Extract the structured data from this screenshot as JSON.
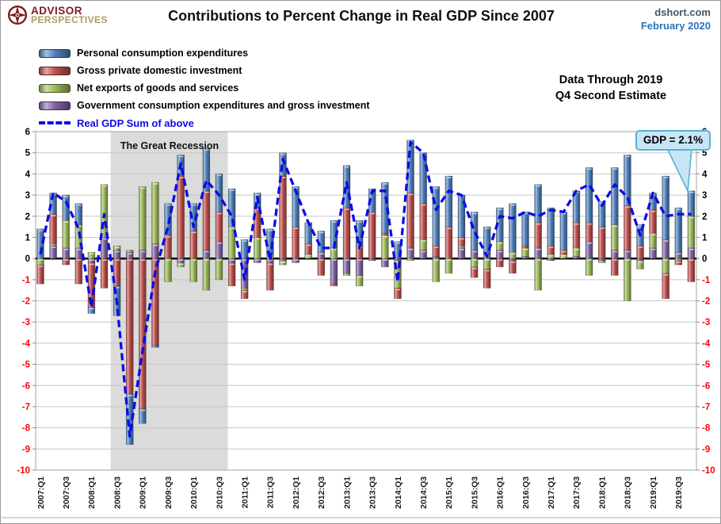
{
  "header": {
    "logo_line1": "ADVISOR",
    "logo_line2": "PERSPECTIVES",
    "title": "Contributions to Percent Change in Real GDP Since 2007",
    "source": "dshort.com",
    "date": "February 2020"
  },
  "annotations": {
    "data_through_line1": "Data Through 2019",
    "data_through_line2": "Q4 Second Estimate",
    "recession_label": "The Great Recession",
    "gdp_callout": "GDP = 2.1%"
  },
  "colors": {
    "callout_bg": "#c7e6f5",
    "callout_border": "#58b0d8",
    "recession_band": "#dbdbdb",
    "gridline": "#c6c6c6",
    "frame": "#a6a6a6",
    "zero_line": "#000000"
  },
  "chart_data": {
    "type": "bar",
    "subtype": "stacked-bars-with-dashed-line-overlay",
    "title": "Contributions to Percent Change in Real GDP Since 2007",
    "categories": [
      "2007:Q1",
      "2007:Q2",
      "2007:Q3",
      "2007:Q4",
      "2008:Q1",
      "2008:Q2",
      "2008:Q3",
      "2008:Q4",
      "2009:Q1",
      "2009:Q2",
      "2009:Q3",
      "2009:Q4",
      "2010:Q1",
      "2010:Q2",
      "2010:Q3",
      "2010:Q4",
      "2011:Q1",
      "2011:Q2",
      "2011:Q3",
      "2011:Q4",
      "2012:Q1",
      "2012:Q2",
      "2012:Q3",
      "2012:Q4",
      "2013:Q1",
      "2013:Q2",
      "2013:Q3",
      "2013:Q4",
      "2014:Q1",
      "2014:Q2",
      "2014:Q3",
      "2014:Q4",
      "2015:Q1",
      "2015:Q2",
      "2015:Q3",
      "2015:Q4",
      "2016:Q1",
      "2016:Q2",
      "2016:Q3",
      "2016:Q4",
      "2017:Q1",
      "2017:Q2",
      "2017:Q3",
      "2017:Q4",
      "2018:Q1",
      "2018:Q2",
      "2018:Q3",
      "2018:Q4",
      "2019:Q1",
      "2019:Q2",
      "2019:Q3",
      "2019:Q4"
    ],
    "x_label_every": 2,
    "ylim": [
      -10,
      6
    ],
    "y_tick_step": 1,
    "axis_colors": {
      "positive": "#000000",
      "negative": "#ff0000"
    },
    "grid": true,
    "legend_position": "top-left",
    "series": [
      {
        "key": "pce",
        "name": "Personal consumption expenditures",
        "color": "#4f81bd",
        "values": [
          1.4,
          1.0,
          1.2,
          1.0,
          -0.3,
          0.0,
          -1.4,
          -2.4,
          -0.7,
          -0.1,
          1.5,
          1.0,
          1.3,
          2.0,
          1.8,
          1.8,
          0.9,
          0.7,
          1.2,
          1.1,
          1.9,
          1.0,
          1.0,
          1.3,
          2.0,
          1.2,
          1.1,
          2.4,
          0.8,
          2.5,
          2.4,
          2.8,
          2.4,
          2.0,
          1.8,
          1.3,
          1.6,
          2.3,
          1.6,
          1.8,
          1.8,
          1.8,
          1.5,
          2.6,
          1.2,
          2.7,
          2.4,
          1.0,
          0.8,
          3.0,
          2.1,
          1.2
        ]
      },
      {
        "key": "inv",
        "name": "Gross private domestic investment",
        "color": "#c0504d",
        "values": [
          -0.9,
          1.4,
          -0.3,
          -1.2,
          -2.1,
          -1.4,
          -1.3,
          -6.4,
          -7.1,
          -4.1,
          1.1,
          3.9,
          1.3,
          2.8,
          1.4,
          -1.1,
          -0.4,
          1.4,
          -1.3,
          3.9,
          1.5,
          0.5,
          -0.8,
          -0.1,
          2.4,
          0.6,
          2.2,
          0.1,
          -0.5,
          2.6,
          1.7,
          0.5,
          1.5,
          0.4,
          -0.5,
          -0.9,
          -0.4,
          -0.6,
          0.1,
          1.2,
          0.4,
          0.2,
          1.2,
          0.9,
          1.5,
          -0.8,
          2.1,
          0.6,
          1.1,
          -1.2,
          -0.2,
          -1.1
        ]
      },
      {
        "key": "netx",
        "name": "Net exports of goods and services",
        "color": "#9bbb59",
        "values": [
          -0.3,
          0.1,
          1.3,
          1.1,
          0.3,
          2.5,
          0.2,
          0.1,
          3.0,
          2.9,
          -1.1,
          -0.2,
          -1.1,
          -1.5,
          -1.0,
          1.5,
          -0.1,
          1.0,
          0.2,
          -0.2,
          0.0,
          0.2,
          0.0,
          0.5,
          -0.1,
          -0.5,
          0.0,
          1.1,
          -1.3,
          -0.1,
          0.5,
          -1.1,
          -0.7,
          0.1,
          -0.4,
          -0.5,
          0.4,
          0.3,
          0.4,
          -1.5,
          0.2,
          0.2,
          0.4,
          -0.8,
          -0.1,
          1.2,
          -2.0,
          -0.4,
          0.7,
          -0.7,
          -0.1,
          1.5
        ]
      },
      {
        "key": "gov",
        "name": "Government consumption expenditures and gross investment",
        "color": "#8064a2",
        "values": [
          0.0,
          0.6,
          0.5,
          0.5,
          -0.2,
          1.0,
          0.4,
          0.3,
          0.4,
          0.7,
          0.0,
          -0.2,
          0.0,
          0.4,
          0.8,
          -0.2,
          -1.4,
          -0.2,
          -0.2,
          -0.1,
          -0.2,
          0.0,
          0.3,
          -1.2,
          -0.7,
          -0.8,
          -0.1,
          -0.4,
          -0.1,
          0.5,
          0.4,
          0.1,
          0.0,
          0.5,
          0.4,
          0.2,
          0.4,
          -0.1,
          0.1,
          0.5,
          -0.1,
          0.0,
          0.1,
          0.8,
          -0.1,
          0.4,
          0.4,
          -0.1,
          0.5,
          0.9,
          0.3,
          0.5
        ]
      }
    ],
    "stack_order_from_axis": [
      "gov",
      "netx",
      "inv",
      "pce"
    ],
    "line": {
      "name": "Real GDP Sum of above",
      "color": "#0b0be8",
      "style": "dashed",
      "values": [
        0.2,
        3.1,
        2.7,
        1.4,
        -2.3,
        2.1,
        -2.1,
        -8.4,
        -4.4,
        -0.6,
        1.5,
        4.5,
        1.5,
        3.7,
        3.0,
        2.0,
        -1.0,
        2.9,
        -0.1,
        4.7,
        3.2,
        1.7,
        0.5,
        0.5,
        3.6,
        0.5,
        3.2,
        3.2,
        -1.1,
        5.5,
        5.0,
        2.3,
        3.2,
        3.0,
        1.3,
        0.1,
        2.0,
        1.9,
        2.2,
        2.0,
        2.3,
        2.2,
        3.2,
        3.5,
        2.5,
        3.5,
        2.9,
        1.1,
        3.1,
        2.0,
        2.1,
        2.1
      ]
    },
    "recession_band": {
      "label": "The Great Recession",
      "from": "2008:Q3",
      "to": "2010:Q3",
      "color": "#dbdbdb"
    },
    "annotation": {
      "text": "GDP = 2.1%",
      "at": "2019:Q4",
      "value": 2.1
    }
  }
}
